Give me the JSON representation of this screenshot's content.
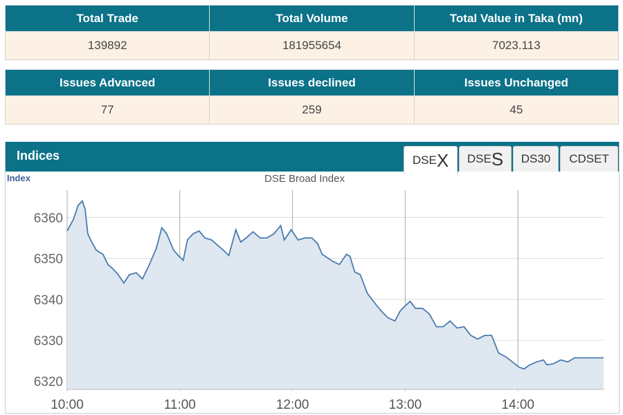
{
  "summary1": {
    "headers": [
      "Total Trade",
      "Total Volume",
      "Total Value in Taka (mn)"
    ],
    "values": [
      "139892",
      "181955654",
      "7023.113"
    ]
  },
  "summary2": {
    "headers": [
      "Issues Advanced",
      "Issues declined",
      "Issues Unchanged"
    ],
    "values": [
      "77",
      "259",
      "45"
    ]
  },
  "indices": {
    "title": "Indices",
    "tabs": [
      {
        "prefix": "DSE",
        "suffix": "X"
      },
      {
        "prefix": "DSE",
        "suffix": "S"
      },
      {
        "prefix": "DS30",
        "suffix": ""
      },
      {
        "prefix": "CDSET",
        "suffix": ""
      }
    ],
    "active_tab": 0
  },
  "chart_data": {
    "type": "area",
    "title": "DSE Broad Index",
    "ylabel": "Index",
    "xlabel": "",
    "x_unit": "minutes since 10:00",
    "xlim": [
      0,
      286
    ],
    "ylim": [
      6318,
      6368
    ],
    "yticks": [
      6320,
      6330,
      6340,
      6350,
      6360
    ],
    "xticks": [
      {
        "v": 0,
        "label": "10:00"
      },
      {
        "v": 60,
        "label": "11:00"
      },
      {
        "v": 120,
        "label": "12:00"
      },
      {
        "v": 180,
        "label": "13:00"
      },
      {
        "v": 240,
        "label": "14:00"
      }
    ],
    "colors": {
      "line": "#4a7bb0",
      "fill": "#dfe7f0"
    },
    "x": [
      0,
      1.5,
      3.3,
      5.9,
      8.1,
      9.6,
      11,
      12.5,
      15.5,
      19.1,
      21.7,
      24.3,
      27.2,
      30.2,
      33.1,
      36.8,
      40.1,
      43.8,
      47.5,
      50.4,
      53,
      56.7,
      59.6,
      61.8,
      64,
      67,
      70.3,
      73.3,
      76.9,
      80.6,
      83.2,
      86.1,
      89.8,
      92.4,
      95.3,
      99,
      102.7,
      106.4,
      110.1,
      113.7,
      115.6,
      119.3,
      122.9,
      126.6,
      130.3,
      133.3,
      135.8,
      141.3,
      145,
      148.7,
      150.6,
      153.1,
      156.1,
      159.8,
      163.4,
      167.1,
      170.8,
      174.5,
      177.4,
      180,
      182.6,
      185.5,
      189.2,
      192.9,
      196.6,
      200.2,
      203.9,
      207.6,
      211.3,
      214.9,
      218.6,
      222.3,
      226,
      229.7,
      233.4,
      237.1,
      240.7,
      243.3,
      246.3,
      249.9,
      253.6,
      255.4,
      259.1,
      262.8,
      266.5,
      270.2,
      285.6
    ],
    "y": [
      6356.7,
      6358,
      6359.5,
      6363,
      6364,
      6362,
      6356,
      6354.5,
      6352,
      6351,
      6348.5,
      6347.5,
      6346,
      6344,
      6346,
      6346.5,
      6345,
      6348.5,
      6352.5,
      6357.5,
      6356,
      6352,
      6350.5,
      6349.5,
      6354.5,
      6356,
      6356.7,
      6355,
      6354.5,
      6353,
      6352,
      6350.7,
      6357,
      6354,
      6355,
      6356.5,
      6355,
      6355,
      6356,
      6358,
      6354.5,
      6357,
      6354.5,
      6355,
      6355,
      6353.6,
      6351,
      6349.3,
      6348.5,
      6351,
      6350.5,
      6346.7,
      6346,
      6341.5,
      6339.3,
      6337.2,
      6335.5,
      6334.7,
      6337.2,
      6338.4,
      6339.5,
      6337.8,
      6337.8,
      6336.4,
      6333.3,
      6333.3,
      6334.7,
      6333,
      6333.3,
      6331.2,
      6330.3,
      6331.2,
      6331.2,
      6326.9,
      6326,
      6324.7,
      6323.4,
      6323,
      6324,
      6324.7,
      6325.2,
      6324,
      6324.3,
      6325.2,
      6324.7,
      6325.7,
      6325.7
    ]
  }
}
